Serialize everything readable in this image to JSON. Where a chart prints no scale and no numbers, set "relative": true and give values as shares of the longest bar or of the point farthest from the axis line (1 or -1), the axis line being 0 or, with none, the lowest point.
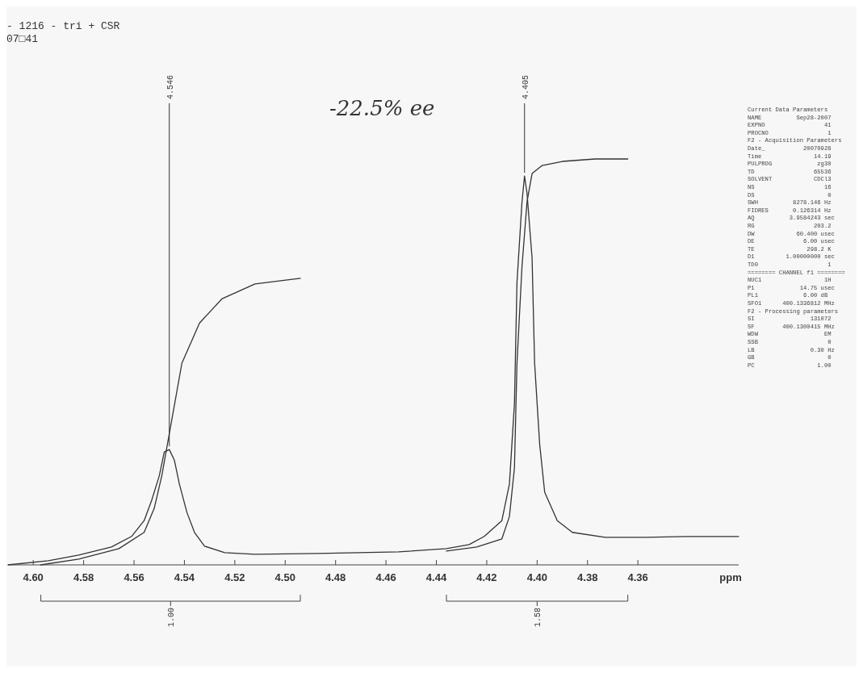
{
  "chart_data": {
    "type": "line",
    "title": "- 1216 - tri + CSR",
    "subtitle": "07□41",
    "xlabel": "ppm",
    "relative": true,
    "grid": false,
    "line_style": "solid",
    "xlim": [
      4.61,
      4.32
    ],
    "xticks": [
      {
        "value": 4.6,
        "label": "4.60"
      },
      4.58,
      4.56,
      4.54,
      4.52,
      {
        "value": 4.5,
        "label": "4.50"
      },
      4.48,
      4.46,
      4.44,
      4.42,
      {
        "value": 4.4,
        "label": "4.40"
      },
      4.38,
      4.36
    ],
    "series": [
      {
        "color": "#333333",
        "x": [
          4.61,
          4.594,
          4.582,
          4.569,
          4.561,
          4.556,
          4.553,
          4.55,
          4.548,
          4.546,
          4.544,
          4.542,
          4.539,
          4.536,
          4.532,
          4.524,
          4.512,
          4.487,
          4.455,
          4.436,
          4.427,
          4.421,
          4.414,
          4.411,
          4.409,
          4.408,
          4.406,
          4.405,
          4.404,
          4.402,
          4.401,
          4.399,
          4.397,
          4.392,
          4.386,
          4.373,
          4.357,
          4.341,
          4.32
        ],
        "values": [
          0,
          0.01,
          0.024,
          0.044,
          0.07,
          0.109,
          0.159,
          0.219,
          0.278,
          0.284,
          0.258,
          0.199,
          0.129,
          0.08,
          0.046,
          0.03,
          0.026,
          0.028,
          0.032,
          0.04,
          0.05,
          0.07,
          0.109,
          0.199,
          0.398,
          0.696,
          0.895,
          0.958,
          0.915,
          0.755,
          0.497,
          0.298,
          0.179,
          0.109,
          0.08,
          0.068,
          0.068,
          0.07,
          0.07
        ]
      },
      {
        "color": "#333333",
        "x": [
          4.597,
          4.582,
          4.566,
          4.556,
          4.552,
          4.549,
          4.545,
          4.541,
          4.534,
          4.525,
          4.512,
          4.494,
          4.46,
          4.436,
          4.424,
          4.414,
          4.411,
          4.409,
          4.408,
          4.406,
          4.404,
          4.402,
          4.398,
          4.39,
          4.377,
          4.364
        ],
        "values": [
          0,
          0.014,
          0.04,
          0.08,
          0.139,
          0.219,
          0.358,
          0.497,
          0.596,
          0.656,
          0.692,
          0.706,
          null,
          0.034,
          0.044,
          0.064,
          0.119,
          0.239,
          0.497,
          0.736,
          0.895,
          0.964,
          0.984,
          0.994,
          1,
          1
        ]
      }
    ],
    "annotations": [
      "-22.5% ee",
      "Current Data Parameters",
      "NAME          Sep28-2007",
      "EXPNO                 41",
      "PROCNO                 1",
      "F2 - Acquisition Parameters",
      "Date_           20070928",
      "Time               14.19",
      "PULPROG             zg30",
      "TD                 65536",
      "SOLVENT            CDCl3",
      "NS                    16",
      "DS                     0",
      "SWH          8278.146 Hz",
      "FIDRES       0.126314 Hz",
      "AQ          3.9584243 sec",
      "RG                 203.2",
      "DW            60.400 usec",
      "DE              6.00 usec",
      "TE               298.2 K",
      "D1         1.00000000 sec",
      "TD0                    1",
      "======== CHANNEL f1 ========",
      "NUC1                  1H",
      "P1             14.75 usec",
      "PL1             6.00 dB",
      "SFO1      400.1336812 MHz",
      "F2 - Processing parameters",
      "SI                131072",
      "SF        400.1300415 MHz",
      "WDW                   EM",
      "SSB                    0",
      "LB                0.30 Hz",
      "GB                     0",
      "PC                  1.00",
      {
        "text": "4.546",
        "x": 4.546,
        "y": 0.284
      },
      {
        "text": "4.405",
        "x": 4.405,
        "y": 0.958
      },
      "1.00",
      "1.58"
    ]
  }
}
